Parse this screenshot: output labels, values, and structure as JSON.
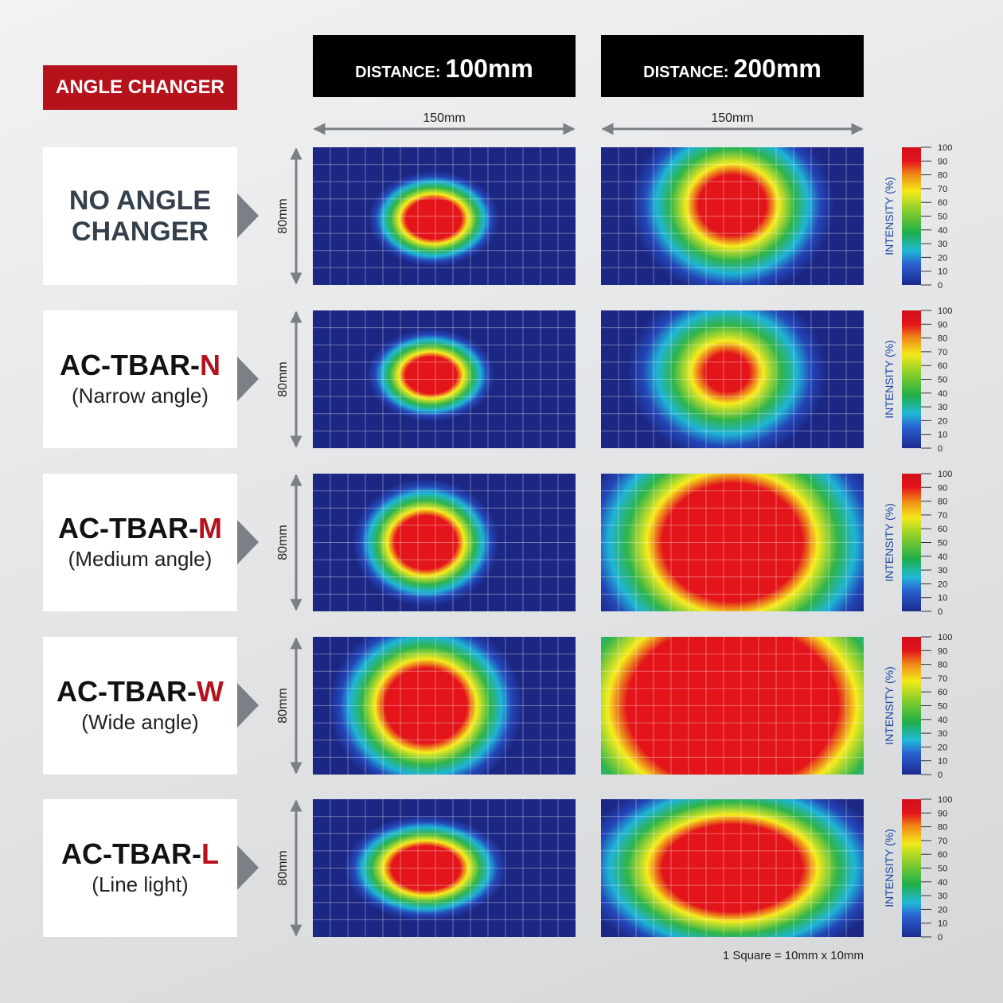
{
  "badge": "ANGLE CHANGER",
  "columns": [
    {
      "label": "DISTANCE:",
      "value": "100mm"
    },
    {
      "label": "DISTANCE:",
      "value": "200mm"
    }
  ],
  "dimensions": {
    "width": "150mm",
    "height": "80mm"
  },
  "rows": [
    {
      "name": "NO ANGLE CHANGER"
    },
    {
      "prefix": "AC-TBAR-",
      "suffix": "N",
      "subtitle": "(Narrow angle)"
    },
    {
      "prefix": "AC-TBAR-",
      "suffix": "M",
      "subtitle": "(Medium angle)"
    },
    {
      "prefix": "AC-TBAR-",
      "suffix": "W",
      "subtitle": "(Wide angle)"
    },
    {
      "prefix": "AC-TBAR-",
      "suffix": "L",
      "subtitle": "(Line light)"
    }
  ],
  "colorbar": {
    "label": "INTENSITY (%)",
    "ticks": [
      0,
      10,
      20,
      30,
      40,
      50,
      60,
      70,
      80,
      90,
      100
    ]
  },
  "footnote": "1 Square = 10mm x 10mm"
}
